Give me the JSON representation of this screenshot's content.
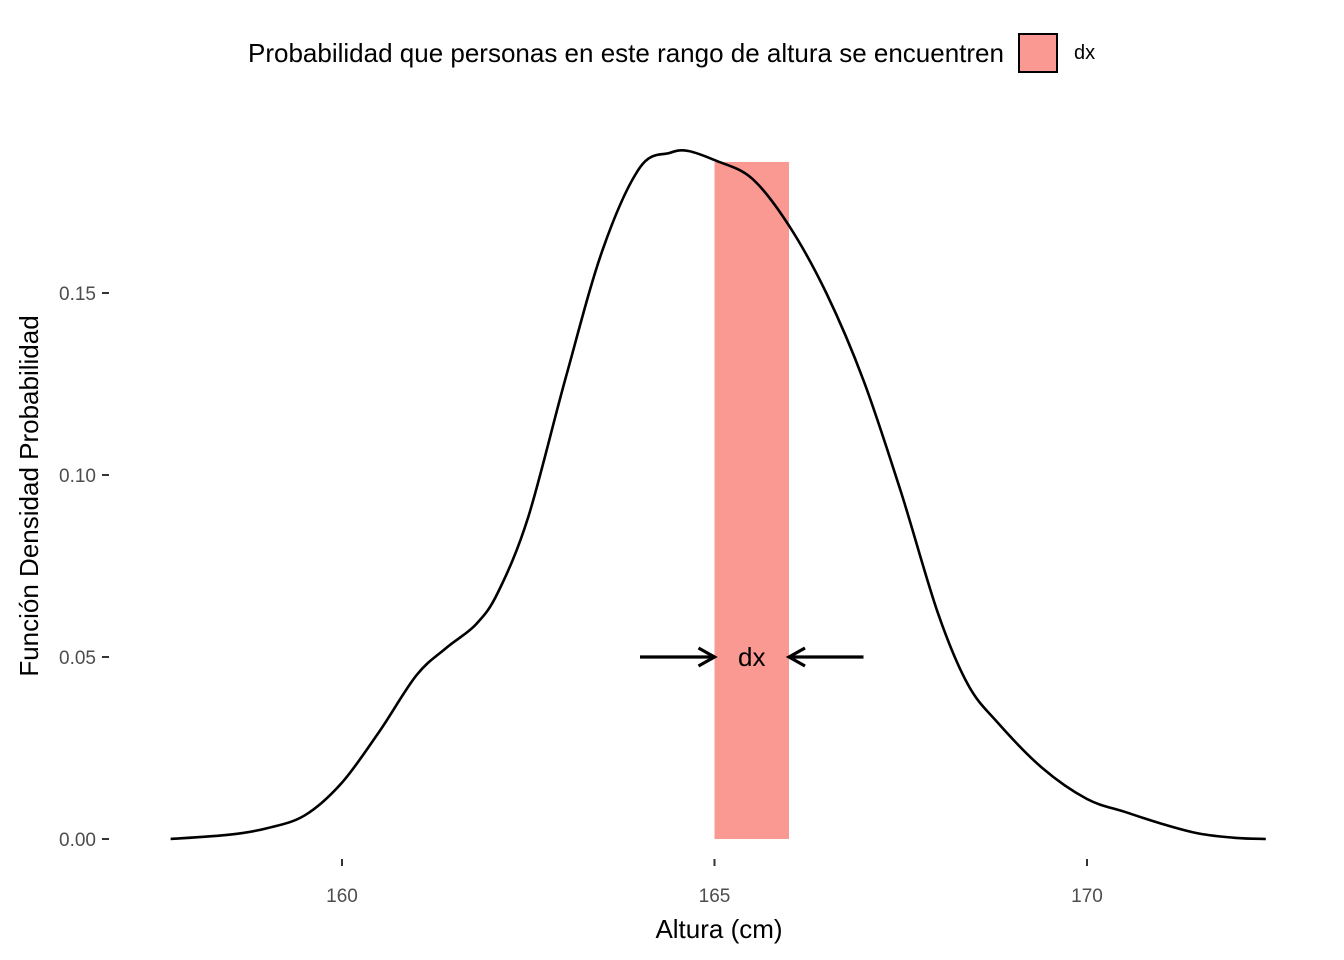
{
  "chart_data": {
    "type": "area",
    "xlabel": "Altura (cm)",
    "ylabel": "Función Densidad Probabilidad",
    "xlim": [
      157.5,
      172.5
    ],
    "ylim": [
      0,
      0.19
    ],
    "x_ticks": [
      160,
      165,
      170
    ],
    "x_tick_labels": [
      "160",
      "165",
      "170"
    ],
    "y_ticks": [
      0,
      0.05,
      0.1,
      0.15
    ],
    "y_tick_labels": [
      "0.00",
      "0.05",
      "0.10",
      "0.15"
    ],
    "grid": false,
    "legend": {
      "title": "Probabilidad que personas en este rango de altura se encuentren",
      "position": "top",
      "entries": [
        {
          "label": "dx",
          "color": "#F8766D"
        }
      ]
    },
    "density_curve": {
      "x": [
        157.7,
        158.5,
        159.0,
        159.5,
        160.0,
        160.5,
        161.0,
        161.4,
        161.8,
        162.1,
        162.5,
        163.0,
        163.5,
        164.0,
        164.4,
        164.65,
        165.0,
        165.5,
        166.0,
        166.5,
        167.0,
        167.5,
        168.0,
        168.4,
        168.8,
        169.4,
        170.0,
        170.5,
        171.0,
        171.5,
        172.0,
        172.4
      ],
      "y": [
        0.0,
        0.0012,
        0.003,
        0.0065,
        0.0155,
        0.0295,
        0.045,
        0.0525,
        0.059,
        0.068,
        0.0885,
        0.1265,
        0.162,
        0.1845,
        0.1885,
        0.189,
        0.1865,
        0.1815,
        0.1685,
        0.15,
        0.126,
        0.0955,
        0.062,
        0.0425,
        0.032,
        0.0195,
        0.011,
        0.0075,
        0.0042,
        0.0015,
        0.0003,
        0.0
      ]
    },
    "highlight": {
      "label": "dx",
      "x_start": 165,
      "x_end": 166,
      "y_top": 0.186,
      "color": "#F8766D",
      "opacity": 0.75
    },
    "annotation": {
      "text": "dx",
      "y": 0.05,
      "left_arrow_from": 164,
      "left_arrow_to": 165,
      "right_arrow_from": 167,
      "right_arrow_to": 166
    }
  }
}
